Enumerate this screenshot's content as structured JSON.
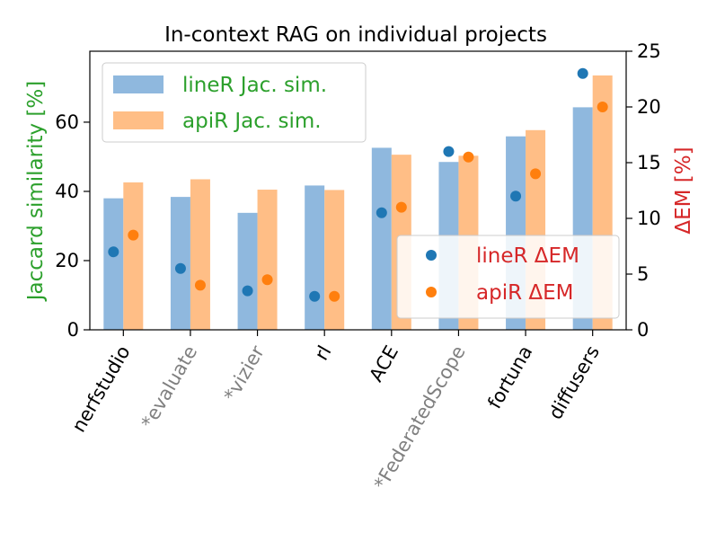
{
  "chart_data": {
    "type": "bar",
    "title": "In-context RAG on individual projects",
    "categories": [
      "nerfstudio",
      "*evaluate",
      "*vizier",
      "rl",
      "ACE",
      "*FederatedScope",
      "fortuna",
      "diffusers"
    ],
    "grey_categories": [
      "*evaluate",
      "*vizier",
      "*FederatedScope"
    ],
    "ylabel": "Jaccard similarity [%]",
    "y2label": "ΔEM [%]",
    "ylim": [
      0,
      80.5
    ],
    "y2lim": [
      0,
      25
    ],
    "yticks": [
      "0",
      "20",
      "40",
      "60"
    ],
    "y2ticks": [
      "0",
      "5",
      "10",
      "15",
      "20",
      "25"
    ],
    "series": [
      {
        "name": "lineR Jac. sim.",
        "kind": "bar",
        "axis": "left",
        "color": "#8fb8de",
        "values": [
          38.0,
          38.4,
          33.8,
          41.7,
          52.6,
          48.5,
          55.9,
          64.3
        ]
      },
      {
        "name": "apiR Jac. sim.",
        "kind": "bar",
        "axis": "left",
        "color": "#ffbe86",
        "values": [
          42.6,
          43.5,
          40.5,
          40.4,
          50.6,
          50.3,
          57.7,
          73.5
        ]
      },
      {
        "name": "lineR ΔEM",
        "kind": "point",
        "axis": "right",
        "color": "#1f77b4",
        "values": [
          7.0,
          5.5,
          3.5,
          3.0,
          10.5,
          16.0,
          12.0,
          23.0
        ]
      },
      {
        "name": "apiR ΔEM",
        "kind": "point",
        "axis": "right",
        "color": "#ff7f0e",
        "values": [
          8.5,
          4.0,
          4.5,
          3.0,
          11.0,
          15.5,
          14.0,
          20.0
        ]
      }
    ],
    "legend_bars": {
      "placement": "upper-left",
      "text_color": "#2ca02c"
    },
    "legend_points": {
      "placement": "lower-right",
      "text_color": "#d62728"
    },
    "ylabel_color": "#2ca02c",
    "y2label_color": "#d62728",
    "category_color": "#000000",
    "grey_color": "#808080"
  }
}
